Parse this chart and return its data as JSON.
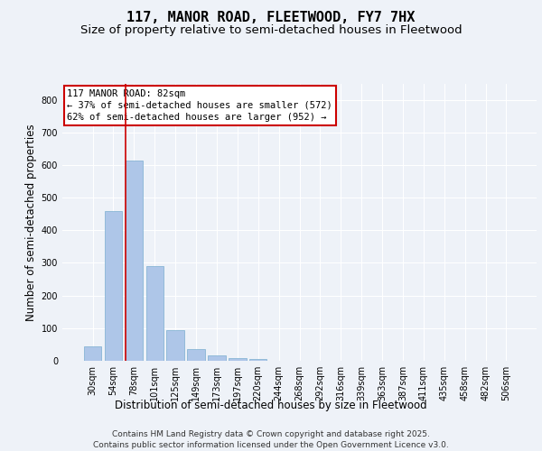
{
  "title": "117, MANOR ROAD, FLEETWOOD, FY7 7HX",
  "subtitle": "Size of property relative to semi-detached houses in Fleetwood",
  "xlabel": "Distribution of semi-detached houses by size in Fleetwood",
  "ylabel": "Number of semi-detached properties",
  "categories": [
    "30sqm",
    "54sqm",
    "78sqm",
    "101sqm",
    "125sqm",
    "149sqm",
    "173sqm",
    "197sqm",
    "220sqm",
    "244sqm",
    "268sqm",
    "292sqm",
    "316sqm",
    "339sqm",
    "363sqm",
    "387sqm",
    "411sqm",
    "435sqm",
    "458sqm",
    "482sqm",
    "506sqm"
  ],
  "values": [
    45,
    460,
    615,
    290,
    93,
    35,
    16,
    8,
    5,
    0,
    0,
    0,
    0,
    0,
    0,
    0,
    0,
    0,
    0,
    0,
    0
  ],
  "bar_color": "#aec6e8",
  "bar_edge_color": "#7aaed0",
  "property_line_color": "#cc0000",
  "annotation_text": "117 MANOR ROAD: 82sqm\n← 37% of semi-detached houses are smaller (572)\n62% of semi-detached houses are larger (952) →",
  "annotation_box_color": "#ffffff",
  "annotation_box_edge": "#cc0000",
  "ylim": [
    0,
    850
  ],
  "yticks": [
    0,
    100,
    200,
    300,
    400,
    500,
    600,
    700,
    800
  ],
  "background_color": "#eef2f8",
  "plot_bg_color": "#eef2f8",
  "footer_text": "Contains HM Land Registry data © Crown copyright and database right 2025.\nContains public sector information licensed under the Open Government Licence v3.0.",
  "title_fontsize": 11,
  "subtitle_fontsize": 9.5,
  "axis_label_fontsize": 8.5,
  "tick_fontsize": 7,
  "annotation_fontsize": 7.5,
  "footer_fontsize": 6.5
}
